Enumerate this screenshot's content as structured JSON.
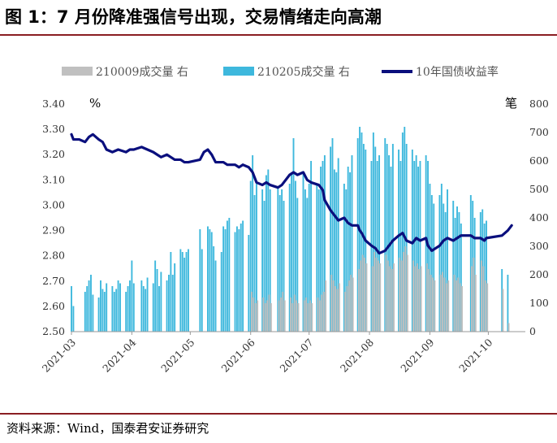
{
  "header": {
    "title": "图 1：7 月份降准强信号出现，交易情绪走向高潮"
  },
  "footer": {
    "source": "资料来源：Wind，国泰君安证券研究"
  },
  "colors": {
    "series_a": "#c0c0c0",
    "series_b": "#3eb8dd",
    "line": "#0a0f7d",
    "rule": "#8a1e22"
  },
  "chart_data": {
    "type": "bar+line",
    "title": "",
    "left_unit": "%",
    "right_unit": "笔",
    "left_axis": {
      "min": 2.5,
      "max": 3.4,
      "ticks": [
        "3.40",
        "3.30",
        "3.20",
        "3.10",
        "3.00",
        "2.90",
        "2.80",
        "2.70",
        "2.60",
        "2.50"
      ]
    },
    "right_axis": {
      "min": 0,
      "max": 800,
      "ticks": [
        "800",
        "700",
        "600",
        "500",
        "400",
        "300",
        "200",
        "100",
        "0"
      ]
    },
    "x_ticks": [
      "2021-03",
      "2021-04",
      "2021-05",
      "2021-06",
      "2021-07",
      "2021-08",
      "2021-09",
      "2021-10"
    ],
    "legend": [
      {
        "label": "210009成交量 右",
        "kind": "bar",
        "color": "#c0c0c0"
      },
      {
        "label": "210205成交量 右",
        "kind": "bar",
        "color": "#3eb8dd"
      },
      {
        "label": "10年国债收益率",
        "kind": "line",
        "color": "#0a0f7d"
      }
    ],
    "bars_210205": [
      [
        "2021-03-01",
        160
      ],
      [
        "2021-03-02",
        90
      ],
      [
        "2021-03-08",
        140
      ],
      [
        "2021-03-09",
        160
      ],
      [
        "2021-03-10",
        180
      ],
      [
        "2021-03-11",
        200
      ],
      [
        "2021-03-12",
        130
      ],
      [
        "2021-03-15",
        120
      ],
      [
        "2021-03-16",
        180
      ],
      [
        "2021-03-17",
        150
      ],
      [
        "2021-03-18",
        140
      ],
      [
        "2021-03-19",
        170
      ],
      [
        "2021-03-22",
        160
      ],
      [
        "2021-03-23",
        140
      ],
      [
        "2021-03-24",
        150
      ],
      [
        "2021-03-25",
        180
      ],
      [
        "2021-03-26",
        170
      ],
      [
        "2021-03-29",
        140
      ],
      [
        "2021-03-30",
        160
      ],
      [
        "2021-03-31",
        180
      ],
      [
        "2021-04-01",
        250
      ],
      [
        "2021-04-02",
        170
      ],
      [
        "2021-04-06",
        180
      ],
      [
        "2021-04-07",
        160
      ],
      [
        "2021-04-08",
        150
      ],
      [
        "2021-04-09",
        190
      ],
      [
        "2021-04-12",
        170
      ],
      [
        "2021-04-13",
        250
      ],
      [
        "2021-04-14",
        220
      ],
      [
        "2021-04-15",
        160
      ],
      [
        "2021-04-16",
        210
      ],
      [
        "2021-04-19",
        180
      ],
      [
        "2021-04-20",
        200
      ],
      [
        "2021-04-21",
        280
      ],
      [
        "2021-04-22",
        200
      ],
      [
        "2021-04-23",
        240
      ],
      [
        "2021-04-26",
        290
      ],
      [
        "2021-04-27",
        280
      ],
      [
        "2021-04-28",
        260
      ],
      [
        "2021-04-29",
        280
      ],
      [
        "2021-04-30",
        290
      ],
      [
        "2021-05-06",
        360
      ],
      [
        "2021-05-07",
        290
      ],
      [
        "2021-05-10",
        370
      ],
      [
        "2021-05-11",
        360
      ],
      [
        "2021-05-12",
        350
      ],
      [
        "2021-05-13",
        300
      ],
      [
        "2021-05-14",
        250
      ],
      [
        "2021-05-17",
        280
      ],
      [
        "2021-05-18",
        370
      ],
      [
        "2021-05-19",
        360
      ],
      [
        "2021-05-20",
        390
      ],
      [
        "2021-05-21",
        400
      ],
      [
        "2021-05-24",
        350
      ],
      [
        "2021-05-25",
        370
      ],
      [
        "2021-05-26",
        360
      ],
      [
        "2021-05-27",
        380
      ],
      [
        "2021-05-28",
        390
      ],
      [
        "2021-05-31",
        340
      ],
      [
        "2021-06-01",
        530
      ],
      [
        "2021-06-02",
        620
      ],
      [
        "2021-06-03",
        480
      ],
      [
        "2021-06-04",
        520
      ],
      [
        "2021-06-07",
        500
      ],
      [
        "2021-06-08",
        460
      ],
      [
        "2021-06-09",
        550
      ],
      [
        "2021-06-10",
        570
      ],
      [
        "2021-06-11",
        500
      ],
      [
        "2021-06-15",
        510
      ],
      [
        "2021-06-16",
        480
      ],
      [
        "2021-06-17",
        500
      ],
      [
        "2021-06-18",
        460
      ],
      [
        "2021-06-21",
        520
      ],
      [
        "2021-06-22",
        560
      ],
      [
        "2021-06-23",
        680
      ],
      [
        "2021-06-24",
        530
      ],
      [
        "2021-06-25",
        470
      ],
      [
        "2021-06-28",
        560
      ],
      [
        "2021-06-29",
        500
      ],
      [
        "2021-06-30",
        470
      ],
      [
        "2021-07-01",
        520
      ],
      [
        "2021-07-02",
        600
      ],
      [
        "2021-07-05",
        520
      ],
      [
        "2021-07-06",
        500
      ],
      [
        "2021-07-07",
        580
      ],
      [
        "2021-07-08",
        600
      ],
      [
        "2021-07-09",
        620
      ],
      [
        "2021-07-12",
        650
      ],
      [
        "2021-07-13",
        680
      ],
      [
        "2021-07-14",
        570
      ],
      [
        "2021-07-15",
        560
      ],
      [
        "2021-07-16",
        610
      ],
      [
        "2021-07-19",
        520
      ],
      [
        "2021-07-20",
        500
      ],
      [
        "2021-07-21",
        580
      ],
      [
        "2021-07-22",
        560
      ],
      [
        "2021-07-23",
        620
      ],
      [
        "2021-07-26",
        680
      ],
      [
        "2021-07-27",
        720
      ],
      [
        "2021-07-28",
        700
      ],
      [
        "2021-07-29",
        660
      ],
      [
        "2021-07-30",
        640
      ],
      [
        "2021-08-02",
        600
      ],
      [
        "2021-08-03",
        700
      ],
      [
        "2021-08-04",
        650
      ],
      [
        "2021-08-05",
        600
      ],
      [
        "2021-08-06",
        620
      ],
      [
        "2021-08-09",
        680
      ],
      [
        "2021-08-10",
        660
      ],
      [
        "2021-08-11",
        620
      ],
      [
        "2021-08-12",
        580
      ],
      [
        "2021-08-13",
        660
      ],
      [
        "2021-08-16",
        640
      ],
      [
        "2021-08-17",
        600
      ],
      [
        "2021-08-18",
        700
      ],
      [
        "2021-08-19",
        720
      ],
      [
        "2021-08-20",
        660
      ],
      [
        "2021-08-23",
        640
      ],
      [
        "2021-08-24",
        600
      ],
      [
        "2021-08-25",
        620
      ],
      [
        "2021-08-26",
        580
      ],
      [
        "2021-08-27",
        600
      ],
      [
        "2021-08-30",
        620
      ],
      [
        "2021-08-31",
        600
      ],
      [
        "2021-09-01",
        520
      ],
      [
        "2021-09-02",
        480
      ],
      [
        "2021-09-03",
        450
      ],
      [
        "2021-09-06",
        480
      ],
      [
        "2021-09-07",
        520
      ],
      [
        "2021-09-08",
        450
      ],
      [
        "2021-09-09",
        420
      ],
      [
        "2021-09-10",
        500
      ],
      [
        "2021-09-13",
        460
      ],
      [
        "2021-09-14",
        400
      ],
      [
        "2021-09-15",
        440
      ],
      [
        "2021-09-16",
        420
      ],
      [
        "2021-09-17",
        380
      ],
      [
        "2021-09-22",
        480
      ],
      [
        "2021-09-23",
        460
      ],
      [
        "2021-09-24",
        400
      ],
      [
        "2021-09-27",
        420
      ],
      [
        "2021-09-28",
        430
      ],
      [
        "2021-09-29",
        380
      ],
      [
        "2021-09-30",
        390
      ],
      [
        "2021-10-08",
        220
      ],
      [
        "2021-10-11",
        200
      ]
    ],
    "bars_210009": [
      [
        "2021-06-01",
        140
      ],
      [
        "2021-06-02",
        120
      ],
      [
        "2021-06-03",
        100
      ],
      [
        "2021-06-04",
        110
      ],
      [
        "2021-06-07",
        120
      ],
      [
        "2021-06-08",
        100
      ],
      [
        "2021-06-09",
        110
      ],
      [
        "2021-06-10",
        130
      ],
      [
        "2021-06-11",
        100
      ],
      [
        "2021-06-15",
        110
      ],
      [
        "2021-06-16",
        120
      ],
      [
        "2021-06-17",
        140
      ],
      [
        "2021-06-18",
        110
      ],
      [
        "2021-06-21",
        120
      ],
      [
        "2021-06-22",
        100
      ],
      [
        "2021-06-23",
        130
      ],
      [
        "2021-06-24",
        110
      ],
      [
        "2021-06-25",
        100
      ],
      [
        "2021-06-28",
        110
      ],
      [
        "2021-06-29",
        120
      ],
      [
        "2021-06-30",
        100
      ],
      [
        "2021-07-01",
        110
      ],
      [
        "2021-07-02",
        100
      ],
      [
        "2021-07-05",
        120
      ],
      [
        "2021-07-06",
        110
      ],
      [
        "2021-07-07",
        130
      ],
      [
        "2021-07-08",
        140
      ],
      [
        "2021-07-09",
        180
      ],
      [
        "2021-07-12",
        200
      ],
      [
        "2021-07-13",
        180
      ],
      [
        "2021-07-14",
        160
      ],
      [
        "2021-07-15",
        150
      ],
      [
        "2021-07-16",
        170
      ],
      [
        "2021-07-19",
        140
      ],
      [
        "2021-07-20",
        160
      ],
      [
        "2021-07-21",
        180
      ],
      [
        "2021-07-22",
        200
      ],
      [
        "2021-07-23",
        190
      ],
      [
        "2021-07-26",
        220
      ],
      [
        "2021-07-27",
        250
      ],
      [
        "2021-07-28",
        270
      ],
      [
        "2021-07-29",
        260
      ],
      [
        "2021-07-30",
        240
      ],
      [
        "2021-08-02",
        230
      ],
      [
        "2021-08-03",
        280
      ],
      [
        "2021-08-04",
        260
      ],
      [
        "2021-08-05",
        250
      ],
      [
        "2021-08-06",
        240
      ],
      [
        "2021-08-09",
        270
      ],
      [
        "2021-08-10",
        250
      ],
      [
        "2021-08-11",
        230
      ],
      [
        "2021-08-12",
        220
      ],
      [
        "2021-08-13",
        240
      ],
      [
        "2021-08-16",
        260
      ],
      [
        "2021-08-17",
        250
      ],
      [
        "2021-08-18",
        280
      ],
      [
        "2021-08-19",
        300
      ],
      [
        "2021-08-20",
        270
      ],
      [
        "2021-08-23",
        250
      ],
      [
        "2021-08-24",
        230
      ],
      [
        "2021-08-25",
        240
      ],
      [
        "2021-08-26",
        220
      ],
      [
        "2021-08-27",
        230
      ],
      [
        "2021-08-30",
        240
      ],
      [
        "2021-08-31",
        220
      ],
      [
        "2021-09-01",
        200
      ],
      [
        "2021-09-02",
        190
      ],
      [
        "2021-09-03",
        180
      ],
      [
        "2021-09-06",
        200
      ],
      [
        "2021-09-07",
        210
      ],
      [
        "2021-09-08",
        190
      ],
      [
        "2021-09-09",
        170
      ],
      [
        "2021-09-10",
        180
      ],
      [
        "2021-09-13",
        200
      ],
      [
        "2021-09-14",
        180
      ],
      [
        "2021-09-15",
        190
      ],
      [
        "2021-09-16",
        170
      ],
      [
        "2021-09-17",
        160
      ],
      [
        "2021-09-22",
        230
      ],
      [
        "2021-09-23",
        260
      ],
      [
        "2021-09-24",
        200
      ],
      [
        "2021-09-27",
        250
      ],
      [
        "2021-09-28",
        230
      ],
      [
        "2021-09-29",
        180
      ],
      [
        "2021-09-30",
        170
      ],
      [
        "2021-10-08",
        150
      ],
      [
        "2021-10-11",
        30
      ]
    ],
    "yield_10y": [
      [
        "2021-03-01",
        3.28
      ],
      [
        "2021-03-02",
        3.26
      ],
      [
        "2021-03-05",
        3.26
      ],
      [
        "2021-03-08",
        3.25
      ],
      [
        "2021-03-10",
        3.27
      ],
      [
        "2021-03-12",
        3.28
      ],
      [
        "2021-03-15",
        3.26
      ],
      [
        "2021-03-17",
        3.25
      ],
      [
        "2021-03-19",
        3.22
      ],
      [
        "2021-03-22",
        3.21
      ],
      [
        "2021-03-25",
        3.22
      ],
      [
        "2021-03-29",
        3.21
      ],
      [
        "2021-03-31",
        3.22
      ],
      [
        "2021-04-02",
        3.22
      ],
      [
        "2021-04-06",
        3.23
      ],
      [
        "2021-04-09",
        3.22
      ],
      [
        "2021-04-12",
        3.21
      ],
      [
        "2021-04-14",
        3.2
      ],
      [
        "2021-04-16",
        3.19
      ],
      [
        "2021-04-19",
        3.2
      ],
      [
        "2021-04-21",
        3.19
      ],
      [
        "2021-04-23",
        3.18
      ],
      [
        "2021-04-26",
        3.18
      ],
      [
        "2021-04-28",
        3.17
      ],
      [
        "2021-04-30",
        3.17
      ],
      [
        "2021-05-06",
        3.18
      ],
      [
        "2021-05-08",
        3.21
      ],
      [
        "2021-05-10",
        3.22
      ],
      [
        "2021-05-12",
        3.2
      ],
      [
        "2021-05-14",
        3.17
      ],
      [
        "2021-05-18",
        3.17
      ],
      [
        "2021-05-20",
        3.16
      ],
      [
        "2021-05-24",
        3.16
      ],
      [
        "2021-05-26",
        3.15
      ],
      [
        "2021-05-28",
        3.16
      ],
      [
        "2021-05-31",
        3.15
      ],
      [
        "2021-06-02",
        3.13
      ],
      [
        "2021-06-04",
        3.09
      ],
      [
        "2021-06-07",
        3.08
      ],
      [
        "2021-06-09",
        3.09
      ],
      [
        "2021-06-11",
        3.08
      ],
      [
        "2021-06-15",
        3.07
      ],
      [
        "2021-06-17",
        3.08
      ],
      [
        "2021-06-21",
        3.12
      ],
      [
        "2021-06-23",
        3.13
      ],
      [
        "2021-06-25",
        3.12
      ],
      [
        "2021-06-28",
        3.13
      ],
      [
        "2021-06-30",
        3.1
      ],
      [
        "2021-07-02",
        3.09
      ],
      [
        "2021-07-06",
        3.08
      ],
      [
        "2021-07-08",
        3.06
      ],
      [
        "2021-07-09",
        3.02
      ],
      [
        "2021-07-12",
        2.98
      ],
      [
        "2021-07-14",
        2.96
      ],
      [
        "2021-07-16",
        2.94
      ],
      [
        "2021-07-19",
        2.95
      ],
      [
        "2021-07-21",
        2.93
      ],
      [
        "2021-07-23",
        2.92
      ],
      [
        "2021-07-26",
        2.92
      ],
      [
        "2021-07-27",
        2.9
      ],
      [
        "2021-07-28",
        2.89
      ],
      [
        "2021-07-30",
        2.86
      ],
      [
        "2021-08-02",
        2.84
      ],
      [
        "2021-08-04",
        2.83
      ],
      [
        "2021-08-06",
        2.81
      ],
      [
        "2021-08-09",
        2.82
      ],
      [
        "2021-08-11",
        2.84
      ],
      [
        "2021-08-13",
        2.86
      ],
      [
        "2021-08-16",
        2.88
      ],
      [
        "2021-08-18",
        2.89
      ],
      [
        "2021-08-20",
        2.86
      ],
      [
        "2021-08-23",
        2.85
      ],
      [
        "2021-08-25",
        2.87
      ],
      [
        "2021-08-27",
        2.86
      ],
      [
        "2021-08-30",
        2.87
      ],
      [
        "2021-08-31",
        2.84
      ],
      [
        "2021-09-02",
        2.82
      ],
      [
        "2021-09-06",
        2.84
      ],
      [
        "2021-09-08",
        2.86
      ],
      [
        "2021-09-10",
        2.87
      ],
      [
        "2021-09-13",
        2.86
      ],
      [
        "2021-09-15",
        2.87
      ],
      [
        "2021-09-17",
        2.88
      ],
      [
        "2021-09-22",
        2.88
      ],
      [
        "2021-09-24",
        2.87
      ],
      [
        "2021-09-27",
        2.87
      ],
      [
        "2021-09-29",
        2.86
      ],
      [
        "2021-09-30",
        2.87
      ],
      [
        "2021-10-08",
        2.88
      ],
      [
        "2021-10-11",
        2.9
      ],
      [
        "2021-10-13",
        2.92
      ]
    ]
  }
}
